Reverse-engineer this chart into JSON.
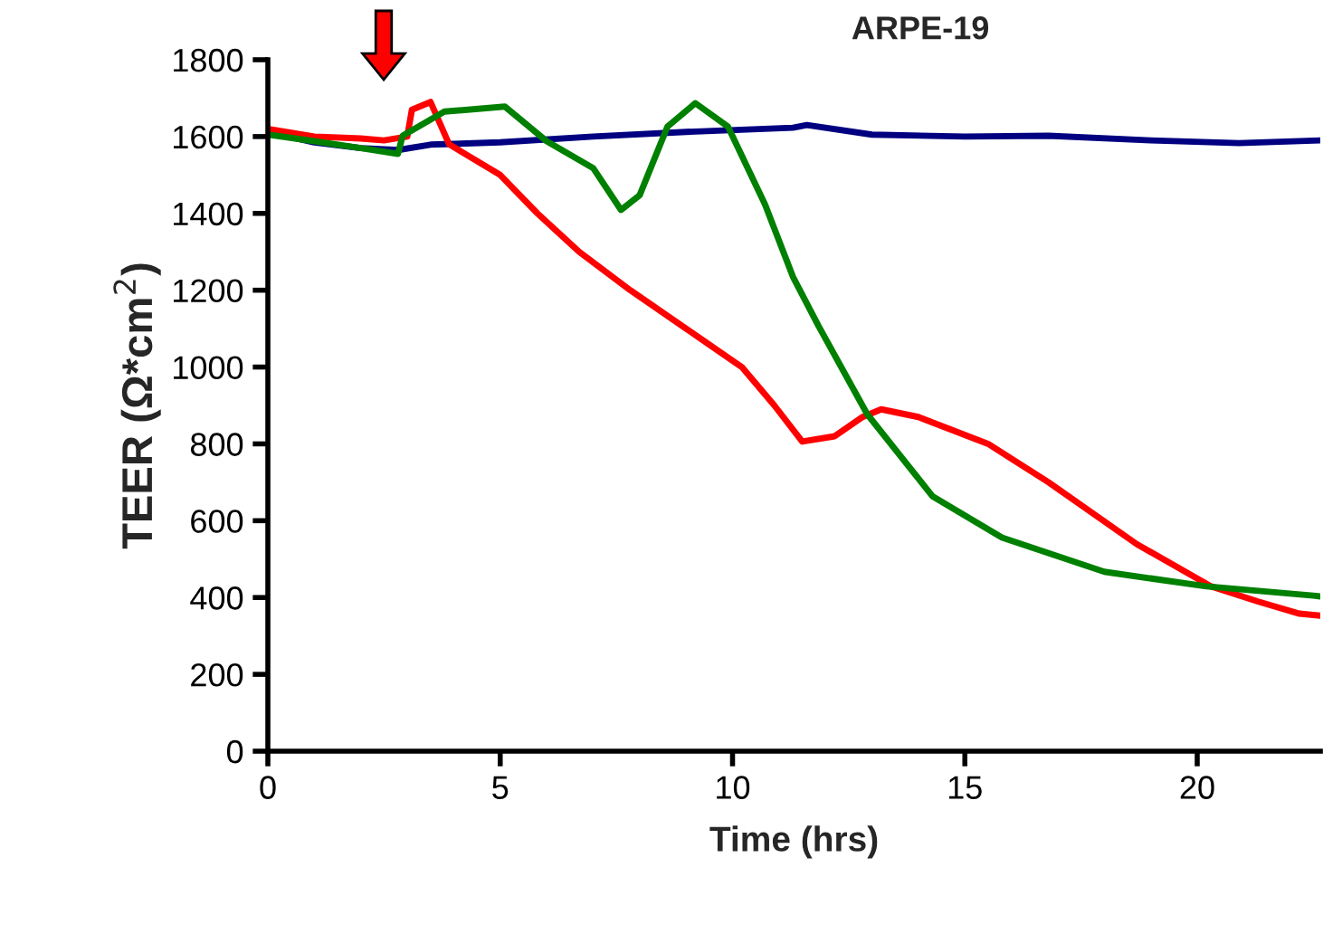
{
  "chart_data": {
    "type": "line",
    "title": "ARPE-19",
    "xlabel": "Time (hrs)",
    "ylabel": "TEER (Ω*cm$^{2}$)",
    "xlim": [
      0,
      22.65
    ],
    "xticks": [
      0,
      5,
      10,
      15,
      20
    ],
    "ylim": [
      0,
      1800
    ],
    "yticks": [
      0,
      200,
      400,
      600,
      800,
      1000,
      1200,
      1400,
      1600,
      1800
    ],
    "grid": false,
    "legend": false,
    "marker": "none",
    "line_style": "solid",
    "series": [
      {
        "color": "#000080",
        "x": [
          0,
          1,
          2,
          2.8,
          3.5,
          5,
          7,
          9,
          11.3,
          11.6,
          13,
          15,
          16.8,
          19,
          20.9,
          22.65
        ],
        "values": [
          1612,
          1585,
          1570,
          1565,
          1579,
          1585,
          1600,
          1612,
          1623,
          1630,
          1605,
          1600,
          1602,
          1590,
          1583,
          1590
        ]
      },
      {
        "color": "#ff0000",
        "x": [
          0,
          1,
          2,
          2.5,
          3.0,
          3.1,
          3.5,
          3.9,
          5,
          5.8,
          6.7,
          7.8,
          9,
          10.2,
          10.9,
          11.5,
          12.2,
          12.8,
          13.2,
          14,
          15.5,
          16.8,
          18.7,
          20.3,
          21.3,
          22.2,
          22.65
        ],
        "values": [
          1620,
          1600,
          1595,
          1590,
          1600,
          1670,
          1690,
          1580,
          1500,
          1400,
          1300,
          1200,
          1100,
          1000,
          900,
          806,
          820,
          870,
          890,
          870,
          800,
          700,
          539,
          429,
          390,
          358,
          353
        ]
      },
      {
        "color": "#008000",
        "x": [
          0,
          1,
          2,
          2.8,
          2.9,
          3.8,
          5.1,
          6,
          7,
          7.6,
          8,
          8.6,
          9.2,
          9.9,
          10.7,
          11.3,
          11.85,
          12.9,
          14.3,
          15.8,
          18,
          20.2,
          22.5,
          22.65
        ],
        "values": [
          1605,
          1588,
          1570,
          1555,
          1602,
          1665,
          1678,
          1588,
          1518,
          1409,
          1447,
          1626,
          1687,
          1626,
          1423,
          1235,
          1107,
          877,
          664,
          556,
          467,
          429,
          405,
          403
        ]
      }
    ]
  }
}
